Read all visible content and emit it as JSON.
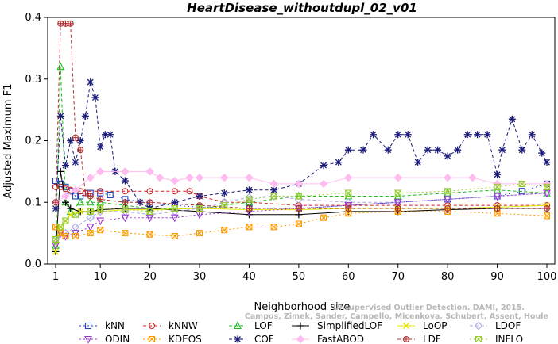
{
  "chart_data": {
    "type": "line",
    "title": "HeartDisease_withoutdupl_02_v01",
    "xlabel": "Neighborhood size",
    "ylabel": "Adjusted Maximum F1",
    "xlim": [
      1,
      100
    ],
    "ylim": [
      0.0,
      0.4
    ],
    "xticks": [
      1,
      10,
      20,
      30,
      40,
      50,
      60,
      70,
      80,
      90,
      100
    ],
    "yticks": [
      0.0,
      0.1,
      0.2,
      0.3,
      0.4
    ],
    "legend_position": "bottom",
    "credit": "Campos, Zimek, Sander, Campello, Micenkova, Schubert, Assent, Houle",
    "credit_line1": "Unsupervised Outlier Detection. DAMI, 2015.",
    "series": [
      {
        "name": "kNN",
        "color": "#1f3fbf",
        "marker": "square",
        "dash": "2,3",
        "points": [
          [
            1,
            0.135
          ],
          [
            2,
            0.13
          ],
          [
            3,
            0.125
          ],
          [
            4,
            0.118
          ],
          [
            5,
            0.11
          ],
          [
            6,
            0.11
          ],
          [
            8,
            0.115
          ],
          [
            10,
            0.115
          ],
          [
            12,
            0.112
          ],
          [
            15,
            0.105
          ],
          [
            20,
            0.098
          ],
          [
            25,
            0.095
          ],
          [
            30,
            0.092
          ],
          [
            40,
            0.09
          ],
          [
            50,
            0.09
          ],
          [
            60,
            0.095
          ],
          [
            70,
            0.1
          ],
          [
            80,
            0.105
          ],
          [
            90,
            0.11
          ],
          [
            95,
            0.118
          ],
          [
            100,
            0.13
          ]
        ]
      },
      {
        "name": "kNNW",
        "color": "#cc2222",
        "marker": "circle",
        "dash": "4,3",
        "points": [
          [
            1,
            0.125
          ],
          [
            2,
            0.125
          ],
          [
            3,
            0.122
          ],
          [
            4,
            0.12
          ],
          [
            6,
            0.118
          ],
          [
            10,
            0.118
          ],
          [
            15,
            0.118
          ],
          [
            20,
            0.118
          ],
          [
            25,
            0.118
          ],
          [
            28,
            0.118
          ],
          [
            30,
            0.11
          ],
          [
            35,
            0.1
          ],
          [
            40,
            0.1
          ],
          [
            50,
            0.095
          ],
          [
            60,
            0.095
          ],
          [
            70,
            0.095
          ],
          [
            80,
            0.095
          ],
          [
            90,
            0.095
          ],
          [
            100,
            0.095
          ]
        ]
      },
      {
        "name": "LOF",
        "color": "#22bb22",
        "marker": "triangle",
        "dash": "4,3",
        "points": [
          [
            1,
            0.03
          ],
          [
            2,
            0.32
          ],
          [
            3,
            0.1
          ],
          [
            4,
            0.085
          ],
          [
            6,
            0.1
          ],
          [
            8,
            0.1
          ],
          [
            10,
            0.1
          ],
          [
            15,
            0.095
          ],
          [
            20,
            0.09
          ],
          [
            30,
            0.09
          ],
          [
            40,
            0.1
          ],
          [
            50,
            0.11
          ],
          [
            60,
            0.11
          ],
          [
            70,
            0.11
          ],
          [
            80,
            0.115
          ],
          [
            90,
            0.12
          ],
          [
            100,
            0.115
          ]
        ]
      },
      {
        "name": "SimplifiedLOF",
        "color": "#000000",
        "marker": "plus",
        "dash": "",
        "points": [
          [
            1,
            0.02
          ],
          [
            2,
            0.15
          ],
          [
            3,
            0.1
          ],
          [
            4,
            0.09
          ],
          [
            6,
            0.085
          ],
          [
            8,
            0.085
          ],
          [
            10,
            0.088
          ],
          [
            15,
            0.09
          ],
          [
            20,
            0.09
          ],
          [
            30,
            0.085
          ],
          [
            40,
            0.08
          ],
          [
            50,
            0.08
          ],
          [
            60,
            0.085
          ],
          [
            70,
            0.085
          ],
          [
            80,
            0.088
          ],
          [
            90,
            0.09
          ],
          [
            100,
            0.09
          ]
        ]
      },
      {
        "name": "LoOP",
        "color": "#e6e600",
        "marker": "x",
        "dash": "",
        "points": [
          [
            1,
            0.02
          ],
          [
            2,
            0.06
          ],
          [
            3,
            0.07
          ],
          [
            4,
            0.08
          ],
          [
            6,
            0.085
          ],
          [
            10,
            0.085
          ],
          [
            15,
            0.088
          ],
          [
            20,
            0.088
          ],
          [
            30,
            0.09
          ],
          [
            40,
            0.088
          ],
          [
            50,
            0.088
          ],
          [
            60,
            0.09
          ],
          [
            70,
            0.09
          ],
          [
            80,
            0.09
          ],
          [
            90,
            0.092
          ],
          [
            100,
            0.095
          ]
        ]
      },
      {
        "name": "LDOF",
        "color": "#a8a8e8",
        "marker": "diamond",
        "dash": "4,3",
        "points": [
          [
            1,
            0.04
          ],
          [
            3,
            0.05
          ],
          [
            5,
            0.06
          ],
          [
            8,
            0.075
          ],
          [
            10,
            0.085
          ],
          [
            15,
            0.085
          ],
          [
            20,
            0.08
          ],
          [
            25,
            0.085
          ],
          [
            30,
            0.09
          ],
          [
            35,
            0.1
          ],
          [
            40,
            0.108
          ],
          [
            45,
            0.11
          ],
          [
            50,
            0.105
          ],
          [
            60,
            0.1
          ],
          [
            70,
            0.1
          ],
          [
            80,
            0.105
          ],
          [
            90,
            0.11
          ],
          [
            100,
            0.115
          ]
        ]
      },
      {
        "name": "ODIN",
        "color": "#9933cc",
        "marker": "triangle-down",
        "dash": "2,3",
        "points": [
          [
            1,
            0.03
          ],
          [
            2,
            0.05
          ],
          [
            3,
            0.045
          ],
          [
            5,
            0.05
          ],
          [
            8,
            0.06
          ],
          [
            10,
            0.07
          ],
          [
            15,
            0.075
          ],
          [
            20,
            0.075
          ],
          [
            25,
            0.075
          ],
          [
            30,
            0.08
          ],
          [
            40,
            0.085
          ],
          [
            50,
            0.09
          ],
          [
            60,
            0.095
          ],
          [
            70,
            0.1
          ],
          [
            80,
            0.105
          ],
          [
            90,
            0.11
          ],
          [
            100,
            0.115
          ]
        ]
      },
      {
        "name": "KDEOS",
        "color": "#ff9900",
        "marker": "square-x",
        "dash": "2,3",
        "points": [
          [
            1,
            0.06
          ],
          [
            2,
            0.05
          ],
          [
            3,
            0.045
          ],
          [
            5,
            0.045
          ],
          [
            8,
            0.05
          ],
          [
            10,
            0.055
          ],
          [
            15,
            0.05
          ],
          [
            20,
            0.048
          ],
          [
            25,
            0.045
          ],
          [
            30,
            0.05
          ],
          [
            35,
            0.055
          ],
          [
            40,
            0.06
          ],
          [
            45,
            0.06
          ],
          [
            50,
            0.065
          ],
          [
            55,
            0.075
          ],
          [
            60,
            0.082
          ],
          [
            70,
            0.085
          ],
          [
            80,
            0.085
          ],
          [
            90,
            0.082
          ],
          [
            100,
            0.078
          ]
        ]
      },
      {
        "name": "COF",
        "color": "#1a1a7a",
        "marker": "asterisk",
        "dash": "4,3",
        "points": [
          [
            1,
            0.09
          ],
          [
            2,
            0.24
          ],
          [
            3,
            0.16
          ],
          [
            4,
            0.2
          ],
          [
            5,
            0.165
          ],
          [
            6,
            0.2
          ],
          [
            7,
            0.24
          ],
          [
            8,
            0.295
          ],
          [
            9,
            0.27
          ],
          [
            10,
            0.19
          ],
          [
            11,
            0.21
          ],
          [
            12,
            0.21
          ],
          [
            13,
            0.15
          ],
          [
            15,
            0.135
          ],
          [
            18,
            0.1
          ],
          [
            20,
            0.09
          ],
          [
            25,
            0.1
          ],
          [
            30,
            0.11
          ],
          [
            35,
            0.115
          ],
          [
            40,
            0.12
          ],
          [
            45,
            0.12
          ],
          [
            50,
            0.13
          ],
          [
            55,
            0.16
          ],
          [
            58,
            0.165
          ],
          [
            60,
            0.185
          ],
          [
            63,
            0.185
          ],
          [
            65,
            0.21
          ],
          [
            68,
            0.185
          ],
          [
            70,
            0.21
          ],
          [
            72,
            0.21
          ],
          [
            74,
            0.165
          ],
          [
            76,
            0.185
          ],
          [
            78,
            0.185
          ],
          [
            80,
            0.175
          ],
          [
            82,
            0.185
          ],
          [
            84,
            0.21
          ],
          [
            86,
            0.21
          ],
          [
            88,
            0.21
          ],
          [
            90,
            0.145
          ],
          [
            91,
            0.185
          ],
          [
            93,
            0.235
          ],
          [
            95,
            0.185
          ],
          [
            97,
            0.21
          ],
          [
            99,
            0.18
          ],
          [
            100,
            0.165
          ]
        ]
      },
      {
        "name": "FastABOD",
        "color": "#ffbbee",
        "marker": "diamond-filled",
        "dash": "",
        "points": [
          [
            1,
            0.1
          ],
          [
            3,
            0.11
          ],
          [
            5,
            0.12
          ],
          [
            8,
            0.14
          ],
          [
            10,
            0.15
          ],
          [
            15,
            0.15
          ],
          [
            20,
            0.15
          ],
          [
            22,
            0.14
          ],
          [
            25,
            0.135
          ],
          [
            28,
            0.14
          ],
          [
            30,
            0.14
          ],
          [
            35,
            0.14
          ],
          [
            40,
            0.14
          ],
          [
            45,
            0.13
          ],
          [
            50,
            0.13
          ],
          [
            55,
            0.13
          ],
          [
            60,
            0.14
          ],
          [
            70,
            0.14
          ],
          [
            80,
            0.14
          ],
          [
            85,
            0.14
          ],
          [
            90,
            0.13
          ],
          [
            100,
            0.13
          ]
        ]
      },
      {
        "name": "LDF",
        "color": "#b03030",
        "marker": "circle-plus",
        "dash": "4,3",
        "points": [
          [
            1,
            0.1
          ],
          [
            2,
            0.39
          ],
          [
            3,
            0.39
          ],
          [
            4,
            0.39
          ],
          [
            5,
            0.205
          ],
          [
            6,
            0.185
          ],
          [
            7,
            0.115
          ],
          [
            8,
            0.11
          ],
          [
            10,
            0.105
          ],
          [
            15,
            0.1
          ],
          [
            20,
            0.1
          ],
          [
            30,
            0.095
          ],
          [
            40,
            0.09
          ],
          [
            50,
            0.09
          ],
          [
            60,
            0.09
          ],
          [
            70,
            0.09
          ],
          [
            80,
            0.09
          ],
          [
            90,
            0.09
          ],
          [
            100,
            0.09
          ]
        ]
      },
      {
        "name": "INFLO",
        "color": "#99cc33",
        "marker": "hourglass",
        "dash": "2,3",
        "points": [
          [
            1,
            0.04
          ],
          [
            2,
            0.06
          ],
          [
            3,
            0.07
          ],
          [
            5,
            0.08
          ],
          [
            8,
            0.085
          ],
          [
            10,
            0.09
          ],
          [
            15,
            0.088
          ],
          [
            20,
            0.085
          ],
          [
            25,
            0.09
          ],
          [
            30,
            0.09
          ],
          [
            35,
            0.095
          ],
          [
            40,
            0.105
          ],
          [
            45,
            0.11
          ],
          [
            50,
            0.11
          ],
          [
            60,
            0.115
          ],
          [
            70,
            0.115
          ],
          [
            80,
            0.118
          ],
          [
            90,
            0.125
          ],
          [
            95,
            0.13
          ],
          [
            100,
            0.125
          ]
        ]
      }
    ]
  }
}
